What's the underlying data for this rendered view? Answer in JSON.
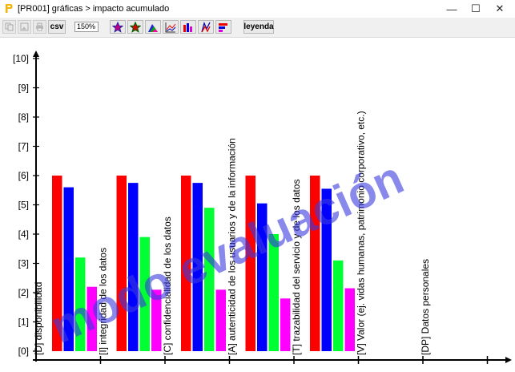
{
  "window": {
    "title": "[PR001] gráficas > impacto acumulado",
    "minimize_label": "—",
    "maximize_label": "☐",
    "close_label": "✕"
  },
  "toolbar": {
    "csv_label": "csv",
    "zoom_value": "150%",
    "legend_label": "leyenda"
  },
  "watermark": "modo evaluación",
  "colors": {
    "red": "#ff0000",
    "blue": "#0000ff",
    "green": "#00ff33",
    "magenta": "#ff00ff"
  },
  "chart_data": {
    "type": "bar",
    "ylim": [
      0,
      10
    ],
    "yticks": [
      "[0]",
      "[1]",
      "[2]",
      "[3]",
      "[4]",
      "[5]",
      "[6]",
      "[7]",
      "[8]",
      "[9]",
      "[10]"
    ],
    "categories": [
      "[D] disponibilidad",
      "[I] integridad de los datos",
      "[C] confidencialidad de los datos",
      "[A] autenticidad de los usuarios y de la información",
      "[T] trazabilidad del servicio y de los datos",
      "[V] Valor (ej. vidas humanas, patrimonio corporativo, etc.)",
      "[DP] Datos personales"
    ],
    "series": [
      {
        "color": "#ff0000",
        "values": [
          6.0,
          6.0,
          6.0,
          6.0,
          6.0,
          null,
          null
        ]
      },
      {
        "color": "#0000ff",
        "values": [
          5.6,
          5.75,
          5.75,
          5.05,
          5.55,
          null,
          null
        ]
      },
      {
        "color": "#00ff33",
        "values": [
          3.2,
          3.9,
          4.9,
          4.0,
          3.1,
          null,
          null
        ]
      },
      {
        "color": "#ff00ff",
        "values": [
          2.2,
          2.1,
          2.1,
          1.8,
          2.15,
          null,
          null
        ]
      }
    ]
  }
}
